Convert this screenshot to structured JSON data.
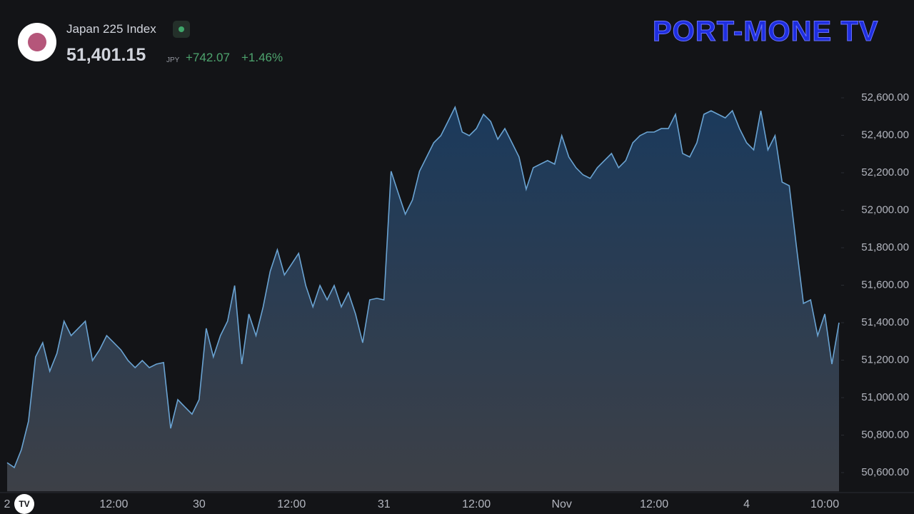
{
  "chart_data": {
    "type": "area",
    "title": "Japan 225 Index",
    "price": "51,401.15",
    "currency": "JPY",
    "change": "+742.07",
    "change_percent": "+1.46%",
    "brand": "PORT-MONE TV",
    "color": "#6aa3d2",
    "categories": [
      "2",
      null,
      null,
      null,
      null,
      null,
      null,
      null,
      null,
      null,
      null,
      null,
      null,
      null,
      null,
      "12:00",
      null,
      null,
      null,
      null,
      null,
      null,
      null,
      null,
      null,
      null,
      null,
      "30",
      null,
      null,
      null,
      null,
      null,
      null,
      null,
      null,
      null,
      null,
      null,
      null,
      "12:00",
      null,
      null,
      null,
      null,
      null,
      null,
      null,
      null,
      null,
      null,
      null,
      null,
      "31",
      null,
      null,
      null,
      null,
      null,
      null,
      null,
      null,
      null,
      null,
      null,
      null,
      "12:00",
      null,
      null,
      null,
      null,
      null,
      null,
      null,
      null,
      null,
      null,
      null,
      "Nov",
      null,
      null,
      null,
      null,
      null,
      null,
      null,
      null,
      null,
      null,
      null,
      null,
      "12:00",
      null,
      null,
      null,
      null,
      null,
      null,
      null,
      null,
      null,
      null,
      null,
      null,
      "4",
      null,
      null,
      null,
      null,
      null,
      null,
      null,
      null,
      null,
      null,
      "10:00",
      null,
      null
    ],
    "values": [
      50653,
      50627,
      50722,
      50874,
      51217,
      51293,
      51141,
      51236,
      51408,
      51331,
      51370,
      51408,
      51198,
      51255,
      51331,
      51293,
      51255,
      51198,
      51160,
      51198,
      51160,
      51179,
      51187,
      50836,
      50989,
      50950,
      50912,
      50989,
      51370,
      51217,
      51331,
      51408,
      51598,
      51179,
      51446,
      51331,
      51484,
      51674,
      51789,
      51655,
      51712,
      51770,
      51598,
      51484,
      51598,
      51522,
      51598,
      51484,
      51560,
      51446,
      51293,
      51522,
      51530,
      51522,
      52208,
      52093,
      51979,
      52055,
      52208,
      52284,
      52360,
      52398,
      52474,
      52550,
      52417,
      52398,
      52436,
      52512,
      52474,
      52379,
      52436,
      52360,
      52284,
      52112,
      52227,
      52246,
      52265,
      52246,
      52398,
      52284,
      52227,
      52189,
      52170,
      52227,
      52265,
      52303,
      52227,
      52265,
      52360,
      52398,
      52417,
      52417,
      52436,
      52436,
      52512,
      52303,
      52284,
      52360,
      52512,
      52531,
      52512,
      52493,
      52531,
      52436,
      52360,
      52322,
      52531,
      52322,
      52398,
      52150,
      52131,
      51808,
      51503,
      51522,
      51331,
      51446,
      51179,
      51400
    ],
    "ylim": [
      50500,
      52720
    ],
    "yticks": [
      {
        "value": 50600,
        "label": "50,600.00"
      },
      {
        "value": 50800,
        "label": "50,800.00"
      },
      {
        "value": 51000,
        "label": "51,000.00"
      },
      {
        "value": 51200,
        "label": "51,200.00"
      },
      {
        "value": 51400,
        "label": "51,400.00"
      },
      {
        "value": 51600,
        "label": "51,600.00"
      },
      {
        "value": 51800,
        "label": "51,800.00"
      },
      {
        "value": 52000,
        "label": "52,000.00"
      },
      {
        "value": 52200,
        "label": "52,200.00"
      },
      {
        "value": 52400,
        "label": "52,400.00"
      },
      {
        "value": 52600,
        "label": "52,600.00"
      }
    ],
    "grid": false
  }
}
